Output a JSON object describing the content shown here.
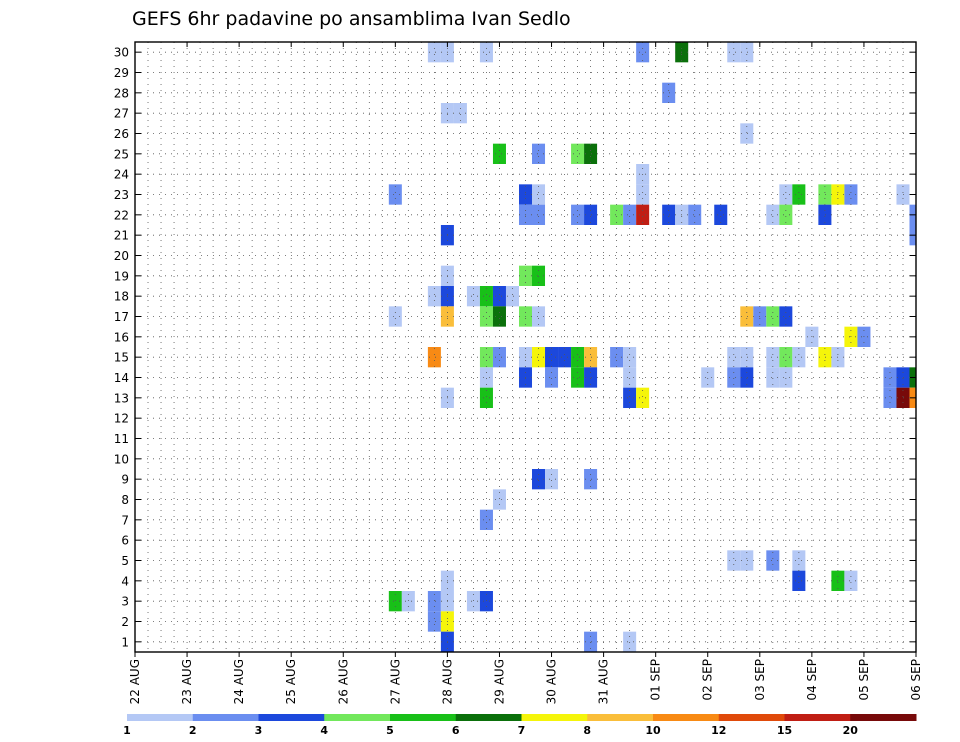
{
  "chart_data": {
    "type": "heatmap",
    "title": "GEFS 6hr padavine po ansamblima Ivan Sedlo",
    "xlabel": "",
    "ylabel": "",
    "x_tick_labels": [
      "22 AUG",
      "23 AUG",
      "24 AUG",
      "25 AUG",
      "26 AUG",
      "27 AUG",
      "28 AUG",
      "29 AUG",
      "30 AUG",
      "31 AUG",
      "01 SEP",
      "02 SEP",
      "03 SEP",
      "04 SEP",
      "05 SEP",
      "06 SEP"
    ],
    "y_tick_labels": [
      "1",
      "2",
      "3",
      "4",
      "5",
      "6",
      "7",
      "8",
      "9",
      "10",
      "11",
      "12",
      "13",
      "14",
      "15",
      "16",
      "17",
      "18",
      "19",
      "20",
      "21",
      "22",
      "23",
      "24",
      "25",
      "26",
      "27",
      "28",
      "29",
      "30"
    ],
    "time_step_hours": 6,
    "x_range_steps": [
      0,
      60
    ],
    "grid": true,
    "legend_position": "bottom",
    "colorbar": {
      "labels": [
        "1",
        "2",
        "3",
        "4",
        "5",
        "6",
        "7",
        "8",
        "10",
        "12",
        "15",
        "20",
        ""
      ],
      "colors": [
        "#b4c8f5",
        "#6b8ef0",
        "#1c48dc",
        "#72e85c",
        "#18c018",
        "#0b700b",
        "#f5f50a",
        "#fabe3a",
        "#f88a14",
        "#e04a0a",
        "#c01e14",
        "#780a0a"
      ]
    },
    "cells": [
      {
        "member": 30,
        "t": 23,
        "c": 0
      },
      {
        "member": 30,
        "t": 24,
        "c": 0
      },
      {
        "member": 30,
        "t": 27,
        "c": 0
      },
      {
        "member": 30,
        "t": 39,
        "c": 1
      },
      {
        "member": 30,
        "t": 42,
        "c": 5
      },
      {
        "member": 30,
        "t": 46,
        "c": 0
      },
      {
        "member": 30,
        "t": 47,
        "c": 0
      },
      {
        "member": 28,
        "t": 41,
        "c": 1
      },
      {
        "member": 27,
        "t": 24,
        "c": 0
      },
      {
        "member": 27,
        "t": 25,
        "c": 0
      },
      {
        "member": 26,
        "t": 47,
        "c": 0
      },
      {
        "member": 25,
        "t": 28,
        "c": 4
      },
      {
        "member": 25,
        "t": 31,
        "c": 1
      },
      {
        "member": 25,
        "t": 34,
        "c": 3
      },
      {
        "member": 25,
        "t": 35,
        "c": 5
      },
      {
        "member": 24,
        "t": 39,
        "c": 0
      },
      {
        "member": 23,
        "t": 20,
        "c": 1
      },
      {
        "member": 23,
        "t": 30,
        "c": 2
      },
      {
        "member": 23,
        "t": 31,
        "c": 0
      },
      {
        "member": 23,
        "t": 39,
        "c": 0
      },
      {
        "member": 23,
        "t": 50,
        "c": 0
      },
      {
        "member": 23,
        "t": 51,
        "c": 4
      },
      {
        "member": 23,
        "t": 53,
        "c": 3
      },
      {
        "member": 23,
        "t": 54,
        "c": 6
      },
      {
        "member": 23,
        "t": 55,
        "c": 1
      },
      {
        "member": 23,
        "t": 59,
        "c": 0
      },
      {
        "member": 22,
        "t": 30,
        "c": 1
      },
      {
        "member": 22,
        "t": 31,
        "c": 1
      },
      {
        "member": 22,
        "t": 34,
        "c": 1
      },
      {
        "member": 22,
        "t": 35,
        "c": 2
      },
      {
        "member": 22,
        "t": 37,
        "c": 3
      },
      {
        "member": 22,
        "t": 38,
        "c": 1
      },
      {
        "member": 22,
        "t": 39,
        "c": 10
      },
      {
        "member": 22,
        "t": 41,
        "c": 2
      },
      {
        "member": 22,
        "t": 42,
        "c": 0
      },
      {
        "member": 22,
        "t": 43,
        "c": 1
      },
      {
        "member": 22,
        "t": 45,
        "c": 2
      },
      {
        "member": 22,
        "t": 49,
        "c": 0
      },
      {
        "member": 22,
        "t": 50,
        "c": 3
      },
      {
        "member": 22,
        "t": 53,
        "c": 2
      },
      {
        "member": 22,
        "t": 60,
        "c": 1
      },
      {
        "member": 21,
        "t": 24,
        "c": 2
      },
      {
        "member": 21,
        "t": 60,
        "c": 1
      },
      {
        "member": 19,
        "t": 24,
        "c": 0
      },
      {
        "member": 19,
        "t": 30,
        "c": 3
      },
      {
        "member": 19,
        "t": 31,
        "c": 4
      },
      {
        "member": 18,
        "t": 23,
        "c": 0
      },
      {
        "member": 18,
        "t": 24,
        "c": 2
      },
      {
        "member": 18,
        "t": 26,
        "c": 0
      },
      {
        "member": 18,
        "t": 27,
        "c": 4
      },
      {
        "member": 18,
        "t": 28,
        "c": 2
      },
      {
        "member": 18,
        "t": 29,
        "c": 0
      },
      {
        "member": 17,
        "t": 20,
        "c": 0
      },
      {
        "member": 17,
        "t": 24,
        "c": 7
      },
      {
        "member": 17,
        "t": 27,
        "c": 3
      },
      {
        "member": 17,
        "t": 28,
        "c": 5
      },
      {
        "member": 17,
        "t": 30,
        "c": 3
      },
      {
        "member": 17,
        "t": 31,
        "c": 0
      },
      {
        "member": 17,
        "t": 47,
        "c": 7
      },
      {
        "member": 17,
        "t": 48,
        "c": 1
      },
      {
        "member": 17,
        "t": 49,
        "c": 3
      },
      {
        "member": 17,
        "t": 50,
        "c": 2
      },
      {
        "member": 16,
        "t": 52,
        "c": 0
      },
      {
        "member": 16,
        "t": 55,
        "c": 6
      },
      {
        "member": 16,
        "t": 56,
        "c": 1
      },
      {
        "member": 15,
        "t": 23,
        "c": 8
      },
      {
        "member": 15,
        "t": 27,
        "c": 3
      },
      {
        "member": 15,
        "t": 28,
        "c": 1
      },
      {
        "member": 15,
        "t": 30,
        "c": 0
      },
      {
        "member": 15,
        "t": 31,
        "c": 6
      },
      {
        "member": 15,
        "t": 32,
        "c": 2
      },
      {
        "member": 15,
        "t": 33,
        "c": 2
      },
      {
        "member": 15,
        "t": 34,
        "c": 4
      },
      {
        "member": 15,
        "t": 35,
        "c": 7
      },
      {
        "member": 15,
        "t": 37,
        "c": 1
      },
      {
        "member": 15,
        "t": 38,
        "c": 0
      },
      {
        "member": 15,
        "t": 46,
        "c": 0
      },
      {
        "member": 15,
        "t": 47,
        "c": 0
      },
      {
        "member": 15,
        "t": 49,
        "c": 0
      },
      {
        "member": 15,
        "t": 50,
        "c": 3
      },
      {
        "member": 15,
        "t": 51,
        "c": 0
      },
      {
        "member": 15,
        "t": 53,
        "c": 6
      },
      {
        "member": 15,
        "t": 54,
        "c": 0
      },
      {
        "member": 14,
        "t": 27,
        "c": 0
      },
      {
        "member": 14,
        "t": 30,
        "c": 2
      },
      {
        "member": 14,
        "t": 32,
        "c": 1
      },
      {
        "member": 14,
        "t": 34,
        "c": 4
      },
      {
        "member": 14,
        "t": 35,
        "c": 2
      },
      {
        "member": 14,
        "t": 38,
        "c": 0
      },
      {
        "member": 14,
        "t": 44,
        "c": 0
      },
      {
        "member": 14,
        "t": 46,
        "c": 1
      },
      {
        "member": 14,
        "t": 47,
        "c": 2
      },
      {
        "member": 14,
        "t": 49,
        "c": 0
      },
      {
        "member": 14,
        "t": 50,
        "c": 0
      },
      {
        "member": 14,
        "t": 58,
        "c": 1
      },
      {
        "member": 14,
        "t": 59,
        "c": 2
      },
      {
        "member": 14,
        "t": 60,
        "c": 5
      },
      {
        "member": 13,
        "t": 24,
        "c": 0
      },
      {
        "member": 13,
        "t": 27,
        "c": 4
      },
      {
        "member": 13,
        "t": 38,
        "c": 2
      },
      {
        "member": 13,
        "t": 39,
        "c": 6
      },
      {
        "member": 13,
        "t": 58,
        "c": 1
      },
      {
        "member": 13,
        "t": 59,
        "c": 11
      },
      {
        "member": 13,
        "t": 60,
        "c": 8
      },
      {
        "member": 9,
        "t": 31,
        "c": 2
      },
      {
        "member": 9,
        "t": 32,
        "c": 0
      },
      {
        "member": 9,
        "t": 35,
        "c": 1
      },
      {
        "member": 8,
        "t": 28,
        "c": 0
      },
      {
        "member": 7,
        "t": 27,
        "c": 1
      },
      {
        "member": 5,
        "t": 46,
        "c": 0
      },
      {
        "member": 5,
        "t": 47,
        "c": 0
      },
      {
        "member": 5,
        "t": 49,
        "c": 1
      },
      {
        "member": 5,
        "t": 51,
        "c": 0
      },
      {
        "member": 4,
        "t": 24,
        "c": 0
      },
      {
        "member": 4,
        "t": 51,
        "c": 2
      },
      {
        "member": 4,
        "t": 54,
        "c": 4
      },
      {
        "member": 4,
        "t": 55,
        "c": 0
      },
      {
        "member": 3,
        "t": 20,
        "c": 4
      },
      {
        "member": 3,
        "t": 21,
        "c": 0
      },
      {
        "member": 3,
        "t": 23,
        "c": 1
      },
      {
        "member": 3,
        "t": 24,
        "c": 0
      },
      {
        "member": 3,
        "t": 26,
        "c": 0
      },
      {
        "member": 3,
        "t": 27,
        "c": 2
      },
      {
        "member": 2,
        "t": 23,
        "c": 1
      },
      {
        "member": 2,
        "t": 24,
        "c": 6
      },
      {
        "member": 1,
        "t": 24,
        "c": 2
      },
      {
        "member": 1,
        "t": 35,
        "c": 1
      },
      {
        "member": 1,
        "t": 38,
        "c": 0
      }
    ]
  }
}
